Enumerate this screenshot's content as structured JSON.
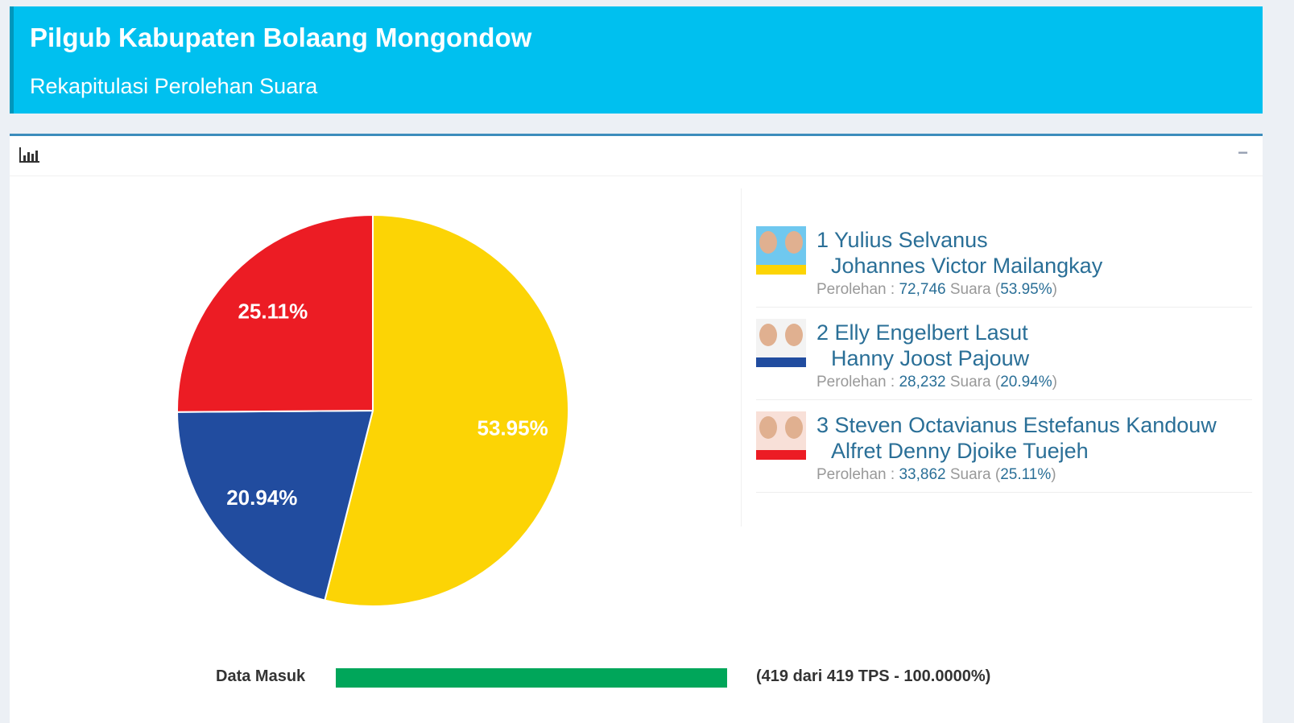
{
  "header": {
    "title": "Pilgub Kabupaten Bolaang Mongondow",
    "subtitle": "Rekapitulasi Perolehan Suara"
  },
  "panel": {
    "collapse_label": "−"
  },
  "chart_data": {
    "type": "pie",
    "labels": [
      "1 Yulius Selvanus / Johannes Victor Mailangkay",
      "2 Elly Engelbert Lasut / Hanny Joost Pajouw",
      "3 Steven Octavianus Estefanus Kandouw / Alfret Denny Djoike Tuejeh"
    ],
    "values": [
      72746,
      28232,
      33862
    ],
    "percent_labels": [
      "53.95%",
      "20.94%",
      "25.11%"
    ],
    "colors": [
      "#fcd405",
      "#214c9f",
      "#ec1c24"
    ]
  },
  "candidates": [
    {
      "name1": "1 Yulius Selvanus",
      "name2": "Johannes Victor Mailangkay",
      "label": "Perolehan : ",
      "votes": "72,746",
      "suara": " Suara (",
      "pct": "53.95%",
      "close": ")",
      "color": "#fcd405",
      "bg": "#6fc8ef"
    },
    {
      "name1": "2 Elly Engelbert Lasut",
      "name2": "Hanny Joost Pajouw",
      "label": "Perolehan : ",
      "votes": "28,232",
      "suara": " Suara (",
      "pct": "20.94%",
      "close": ")",
      "color": "#214c9f",
      "bg": "#f3f3f3"
    },
    {
      "name1": "3 Steven Octavianus Estefanus Kandouw",
      "name2": "Alfret Denny Djoike Tuejeh",
      "label": "Perolehan : ",
      "votes": "33,862",
      "suara": " Suara (",
      "pct": "25.11%",
      "close": ")",
      "color": "#ec1c24",
      "bg": "#f8e0d8"
    }
  ],
  "data_masuk": {
    "label": "Data Masuk",
    "progress_percent": 100,
    "text": "(419 dari 419 TPS - 100.0000%)"
  }
}
